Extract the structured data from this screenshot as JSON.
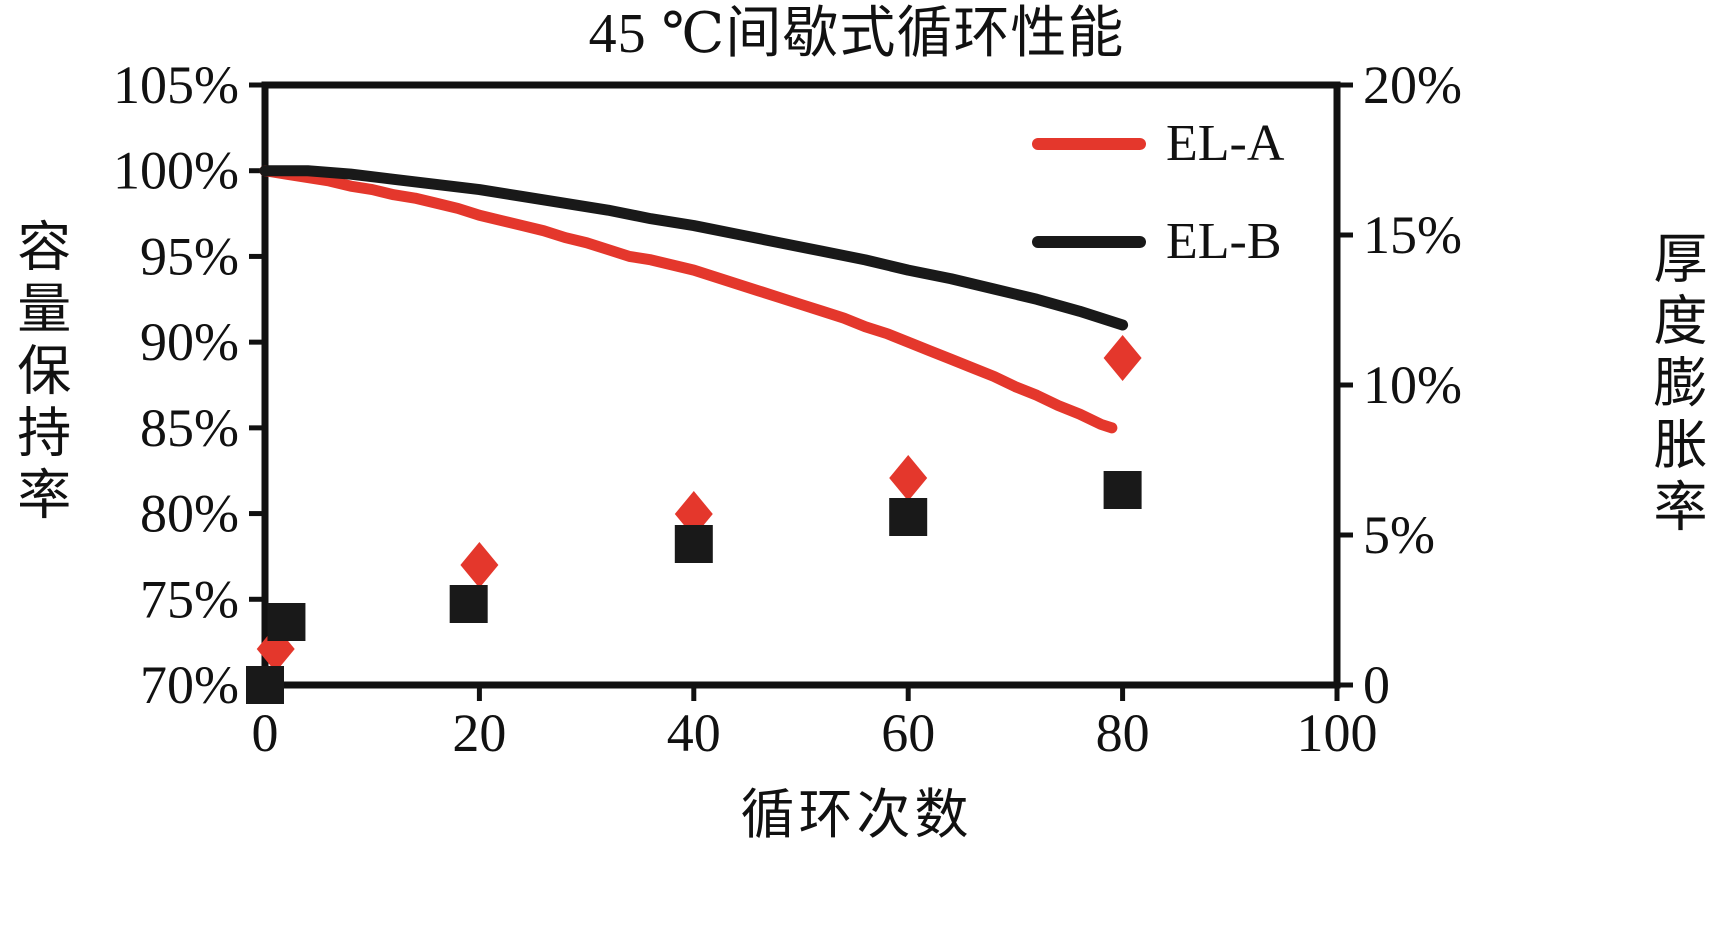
{
  "chart_data": {
    "type": "line+scatter",
    "title": "45 ℃间歇式循环性能",
    "xlabel": "循环次数",
    "ylabel_left": "容量保持率",
    "ylabel_right": "厚度膨胀率",
    "grid": false,
    "legend_position": "top-right-inside",
    "x_axis": {
      "min": 0,
      "max": 100,
      "tick_values": [
        0,
        20,
        40,
        60,
        80,
        100
      ],
      "tick_labels": [
        "0",
        "20",
        "40",
        "60",
        "80",
        "100"
      ]
    },
    "y_axis_left": {
      "min": 70,
      "max": 105,
      "unit": "%",
      "tick_values": [
        70,
        75,
        80,
        85,
        90,
        95,
        100,
        105
      ],
      "tick_labels": [
        "70%",
        "75%",
        "80%",
        "85%",
        "90%",
        "95%",
        "100%",
        "105%"
      ]
    },
    "y_axis_right": {
      "min": 0,
      "max": 20,
      "unit": "%",
      "tick_values": [
        0,
        5,
        10,
        15,
        20
      ],
      "tick_labels": [
        "0",
        "5%",
        "10%",
        "15%",
        "20%"
      ]
    },
    "legend": [
      {
        "label": "EL-A",
        "color": "#e4372c"
      },
      {
        "label": "EL-B",
        "color": "#191919"
      }
    ],
    "series": [
      {
        "name": "EL-A capacity retention",
        "type": "line",
        "axis": "left",
        "color": "#e4372c",
        "width": 11,
        "x": [
          0,
          2,
          4,
          6,
          8,
          10,
          12,
          14,
          16,
          18,
          20,
          22,
          24,
          26,
          28,
          30,
          32,
          34,
          36,
          38,
          40,
          42,
          44,
          46,
          48,
          50,
          52,
          54,
          56,
          58,
          60,
          62,
          64,
          66,
          68,
          70,
          72,
          74,
          76,
          78,
          79
        ],
        "y": [
          100,
          99.8,
          99.6,
          99.4,
          99.1,
          98.9,
          98.6,
          98.4,
          98.1,
          97.8,
          97.4,
          97.1,
          96.8,
          96.5,
          96.1,
          95.8,
          95.4,
          95.0,
          94.8,
          94.5,
          94.2,
          93.8,
          93.4,
          93.0,
          92.6,
          92.2,
          91.8,
          91.4,
          90.9,
          90.5,
          90.0,
          89.5,
          89.0,
          88.5,
          88.0,
          87.4,
          86.9,
          86.3,
          85.8,
          85.2,
          85.0
        ]
      },
      {
        "name": "EL-B capacity retention",
        "type": "line",
        "axis": "left",
        "color": "#191919",
        "width": 11,
        "x": [
          0,
          4,
          8,
          12,
          16,
          20,
          24,
          28,
          32,
          36,
          40,
          44,
          48,
          52,
          56,
          60,
          64,
          68,
          72,
          76,
          80
        ],
        "y": [
          100,
          100,
          99.8,
          99.5,
          99.2,
          98.9,
          98.5,
          98.1,
          97.7,
          97.2,
          96.8,
          96.3,
          95.8,
          95.3,
          94.8,
          94.2,
          93.7,
          93.1,
          92.5,
          91.8,
          91.0
        ]
      }
    ],
    "scatter": [
      {
        "name": "EL-A thickness expansion",
        "type": "scatter",
        "marker": "diamond",
        "axis": "right",
        "color": "#e4372c",
        "x": [
          1,
          20,
          40,
          60,
          80
        ],
        "y": [
          1.2,
          4.0,
          5.7,
          6.9,
          10.9
        ]
      },
      {
        "name": "EL-B thickness expansion",
        "type": "scatter",
        "marker": "square",
        "axis": "right",
        "color": "#191919",
        "x": [
          0,
          2,
          19,
          40,
          60,
          80
        ],
        "y": [
          0,
          2.1,
          2.7,
          4.7,
          5.6,
          6.5
        ]
      }
    ]
  }
}
